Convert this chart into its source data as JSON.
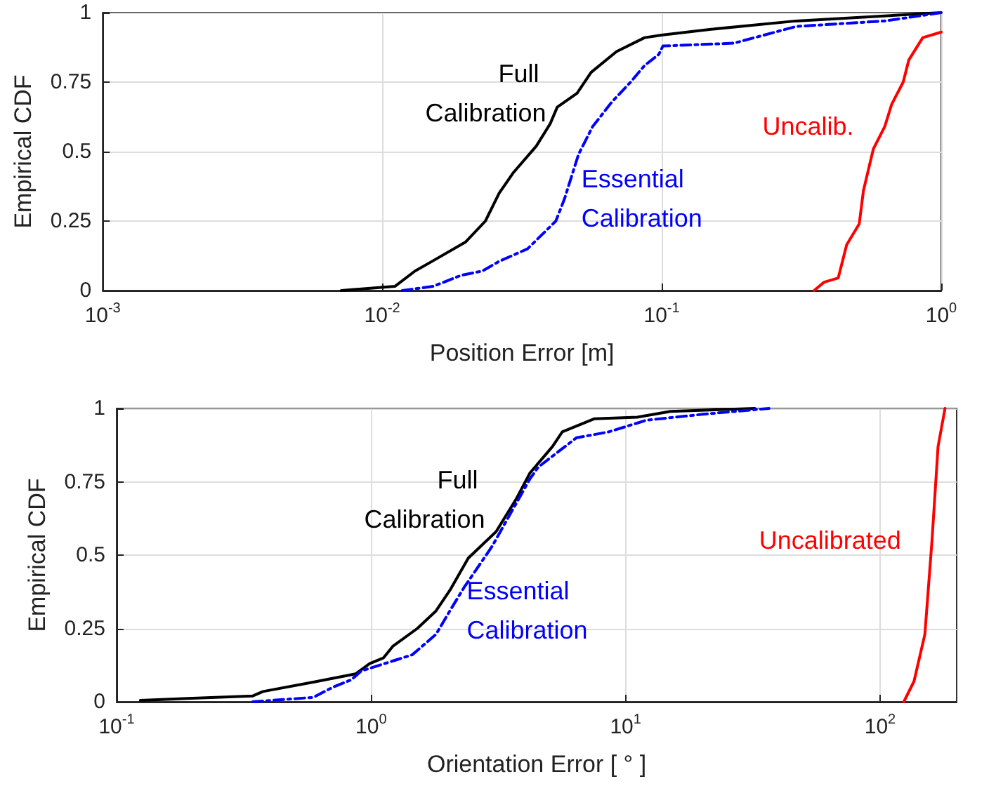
{
  "chart_data": [
    {
      "type": "line",
      "xlabel": "Position Error [m]",
      "ylabel": "Empirical CDF",
      "log": "x",
      "grid": true,
      "legend": false,
      "marker": "none",
      "xlim": [
        0.001,
        1
      ],
      "ylim": [
        0,
        1
      ],
      "xticks": [
        {
          "value": 0.001,
          "label": "10$^{-3}$"
        },
        {
          "value": 0.01,
          "label": "10$^{-2}$"
        },
        {
          "value": 0.1,
          "label": "10$^{-1}$"
        },
        {
          "value": 1,
          "label": "10$^{0}$"
        }
      ],
      "yticks": [
        0,
        0.25,
        0.5,
        0.75,
        1
      ],
      "series": [
        {
          "name": "Full Calibration",
          "color": "#000000",
          "line_style": "solid",
          "x": [
            0.00714,
            0.0111,
            0.0131,
            0.0152,
            0.0199,
            0.0234,
            0.0262,
            0.0295,
            0.0356,
            0.0399,
            0.0423,
            0.0498,
            0.0559,
            0.0689,
            0.0869,
            0.101,
            0.15,
            0.302,
            1
          ],
          "values": [
            0,
            0.015,
            0.07,
            0.107,
            0.175,
            0.25,
            0.35,
            0.425,
            0.52,
            0.6,
            0.66,
            0.71,
            0.785,
            0.86,
            0.91,
            0.92,
            0.94,
            0.97,
            1
          ]
        },
        {
          "name": "Essential Calibration",
          "color": "#0000ff",
          "line_style": "dashed",
          "x": [
            0.0118,
            0.0152,
            0.0192,
            0.0228,
            0.0262,
            0.0331,
            0.0418,
            0.0449,
            0.0504,
            0.0566,
            0.0665,
            0.0774,
            0.0869,
            0.0977,
            0.101,
            0.181,
            0.302,
            0.628,
            1
          ],
          "values": [
            0,
            0.015,
            0.055,
            0.07,
            0.105,
            0.15,
            0.25,
            0.33,
            0.49,
            0.59,
            0.68,
            0.75,
            0.81,
            0.85,
            0.88,
            0.89,
            0.95,
            0.97,
            1
          ]
        },
        {
          "name": "Uncalib.",
          "color": "#ff0000",
          "line_style": "solid",
          "x": [
            0.351,
            0.381,
            0.428,
            0.459,
            0.509,
            0.527,
            0.572,
            0.628,
            0.665,
            0.731,
            0.766,
            0.859,
            1
          ],
          "values": [
            0,
            0.03,
            0.045,
            0.165,
            0.24,
            0.36,
            0.51,
            0.59,
            0.67,
            0.75,
            0.83,
            0.91,
            0.93
          ]
        }
      ]
    },
    {
      "type": "line",
      "xlabel": "Orientation Error [ ° ]",
      "ylabel": "Empirical CDF",
      "log": "x",
      "grid": true,
      "legend": false,
      "marker": "none",
      "xlim": [
        0.1,
        200
      ],
      "ylim": [
        0,
        1
      ],
      "xticks": [
        {
          "value": 0.1,
          "label": "10$^{-1}$"
        },
        {
          "value": 1,
          "label": "10$^{0}$"
        },
        {
          "value": 10,
          "label": "10$^{1}$"
        },
        {
          "value": 100,
          "label": "10$^{2}$"
        }
      ],
      "yticks": [
        0,
        0.25,
        0.5,
        0.75,
        1
      ],
      "series": [
        {
          "name": "Full Calibration",
          "color": "#000000",
          "line_style": "solid",
          "x": [
            0.124,
            0.343,
            0.376,
            0.593,
            0.869,
            0.987,
            1.12,
            1.22,
            1.52,
            1.8,
            2.04,
            2.41,
            3.1,
            3.71,
            4.21,
            5.16,
            5.64,
            7.55,
            11.1,
            15,
            32.2
          ],
          "values": [
            0.005,
            0.02,
            0.035,
            0.067,
            0.095,
            0.13,
            0.15,
            0.19,
            0.25,
            0.31,
            0.38,
            0.49,
            0.58,
            0.69,
            0.78,
            0.87,
            0.92,
            0.965,
            0.97,
            0.99,
            1
          ]
        },
        {
          "name": "Essential Calibration",
          "color": "#0000ff",
          "line_style": "dashed",
          "x": [
            0.343,
            0.593,
            0.709,
            0.837,
            0.915,
            1.45,
            1.8,
            2.04,
            2.32,
            2.99,
            4.21,
            4.54,
            6.41,
            8.58,
            12.1,
            20.1,
            36.6
          ],
          "values": [
            0,
            0.015,
            0.05,
            0.075,
            0.105,
            0.16,
            0.23,
            0.31,
            0.39,
            0.53,
            0.76,
            0.8,
            0.9,
            0.92,
            0.96,
            0.98,
            1
          ]
        },
        {
          "name": "Uncalibrated",
          "color": "#ff0000",
          "line_style": "solid",
          "x": [
            124,
            136,
            150,
            160,
            169,
            180
          ],
          "values": [
            0,
            0.07,
            0.23,
            0.55,
            0.87,
            1
          ]
        }
      ]
    }
  ]
}
